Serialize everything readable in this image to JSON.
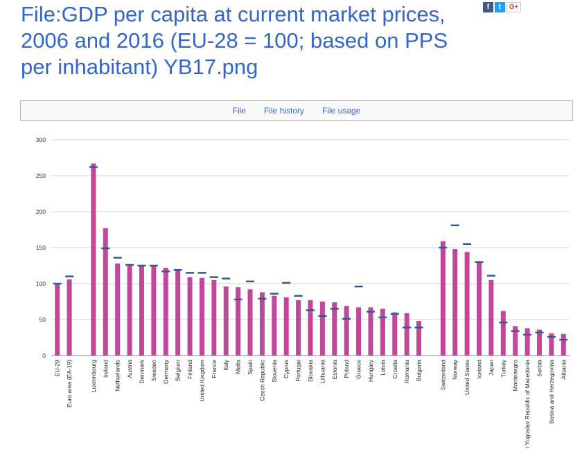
{
  "page": {
    "title": "File:GDP per capita at current market prices, 2006 and 2016 (EU-28 = 100; based on PPS per inhabitant) YB17.png"
  },
  "share": {
    "facebook_glyph": "f",
    "twitter_glyph": "t",
    "googleplus_glyph": "G+"
  },
  "tabs": [
    {
      "label": "File"
    },
    {
      "label": "File history"
    },
    {
      "label": "File usage"
    }
  ],
  "chart_data": {
    "type": "bar",
    "title": "",
    "xlabel": "",
    "ylabel": "",
    "ylim": [
      0,
      300
    ],
    "yticks": [
      0,
      50,
      100,
      150,
      200,
      250,
      300
    ],
    "grid": true,
    "bar_color": "#c2479b",
    "marker_color": "#2e5b97",
    "categories": [
      "EU-28",
      "Euro area (EA-19)",
      "",
      "Luxembourg",
      "Ireland",
      "Netherlands",
      "Austria",
      "Denmark",
      "Sweden",
      "Germany",
      "Belgium",
      "Finland",
      "United Kingdom",
      "France",
      "Italy",
      "Malta",
      "Spain",
      "Czech Republic",
      "Slovenia",
      "Cyprus",
      "Portugal",
      "Slovakia",
      "Lithuania",
      "Estonia",
      "Poland",
      "Greece",
      "Hungary",
      "Latvia",
      "Croatia",
      "Romania",
      "Bulgaria",
      "",
      "Switzerland",
      "Norway",
      "United States",
      "Iceland",
      "Japan",
      "Turkey",
      "Montenegro",
      "r Yugoslav Republic of Macedonia",
      "Serbia",
      "Bosnia and Herzegovina",
      "Albania"
    ],
    "series": [
      {
        "values": [
          100,
          106,
          null,
          267,
          177,
          128,
          126,
          125,
          124,
          122,
          118,
          109,
          108,
          105,
          96,
          95,
          92,
          88,
          83,
          81,
          77,
          77,
          75,
          74,
          69,
          67,
          67,
          65,
          60,
          59,
          48,
          null,
          159,
          148,
          144,
          129,
          105,
          62,
          41,
          38,
          36,
          31,
          30
        ]
      },
      {
        "values": [
          100,
          110,
          null,
          262,
          149,
          136,
          126,
          125,
          125,
          117,
          119,
          115,
          115,
          109,
          107,
          78,
          103,
          79,
          86,
          101,
          83,
          63,
          55,
          65,
          51,
          96,
          61,
          53,
          58,
          39,
          39,
          null,
          150,
          181,
          155,
          130,
          111,
          46,
          34,
          29,
          32,
          26,
          22
        ]
      }
    ]
  }
}
